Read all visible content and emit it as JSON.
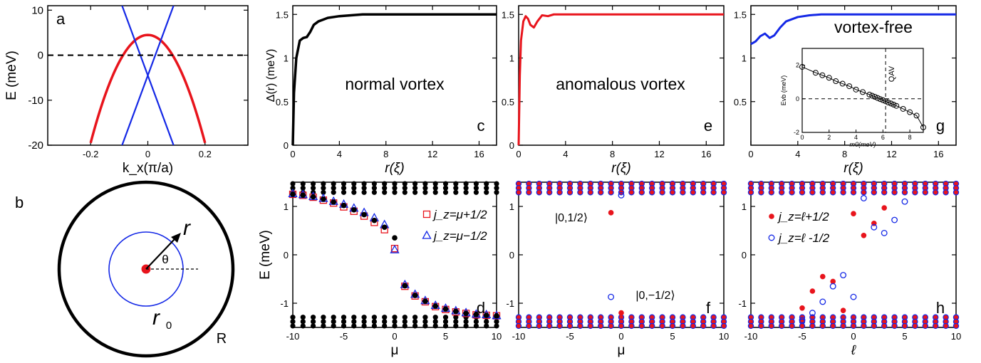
{
  "colors": {
    "red": "#e8141c",
    "blue": "#1428e6",
    "black": "#000000",
    "purple": "#8a2a8a"
  },
  "chart_data": [
    {
      "id": "a",
      "type": "line",
      "panel_label": "a",
      "ylabel": "E (meV)",
      "xlabel": "k_x(π/a)",
      "xlim": [
        -0.35,
        0.35
      ],
      "ylim": [
        -20,
        11
      ],
      "xticks": [
        "-0.2",
        "0",
        "0.2"
      ],
      "yticks": [
        "10",
        "0",
        "-10",
        "-20"
      ],
      "series": [
        {
          "color": "red",
          "curve": "E = 4.5 - 600 k^2",
          "x": [
            -0.2,
            -0.15,
            -0.1,
            -0.05,
            0,
            0.05,
            0.1,
            0.15,
            0.2
          ],
          "y": [
            -19.5,
            -9,
            -1.5,
            3,
            4.5,
            3,
            -1.5,
            -9,
            -19.5
          ]
        },
        {
          "color": "blue",
          "x": [
            -0.09,
            0.09
          ],
          "y": [
            -20,
            11
          ]
        },
        {
          "color": "blue",
          "x": [
            -0.09,
            0.09
          ],
          "y": [
            11,
            -20
          ]
        },
        {
          "color": "black",
          "dashed": true,
          "x": [
            -0.35,
            0.35
          ],
          "y": [
            0,
            0
          ]
        }
      ]
    },
    {
      "id": "c",
      "type": "line",
      "panel_label": "c",
      "annotation": "normal vortex",
      "ylabel": "Δ(r) (meV)",
      "xlabel": "r(ξ)",
      "xlim": [
        0,
        17.5
      ],
      "ylim": [
        0,
        1.6
      ],
      "xticks": [
        "0",
        "4",
        "8",
        "12",
        "16"
      ],
      "yticks": [
        "0",
        "0.5",
        "1",
        "1.5"
      ],
      "series": [
        {
          "color": "black",
          "x": [
            0,
            0.1,
            0.3,
            0.6,
            0.9,
            1.2,
            1.5,
            1.8,
            2.2,
            2.6,
            3.0,
            4,
            5,
            6,
            8,
            10,
            17.5
          ],
          "y": [
            0,
            0.6,
            1.0,
            1.2,
            1.23,
            1.24,
            1.3,
            1.38,
            1.42,
            1.44,
            1.46,
            1.48,
            1.49,
            1.5,
            1.5,
            1.5,
            1.5
          ]
        }
      ]
    },
    {
      "id": "e",
      "type": "line",
      "panel_label": "e",
      "annotation": "anomalous vortex",
      "xlabel": "r(ξ)",
      "xlim": [
        0,
        17.5
      ],
      "ylim": [
        0,
        1.6
      ],
      "xticks": [
        "0",
        "4",
        "8",
        "12",
        "16"
      ],
      "yticks": [
        "0",
        "0.5",
        "1",
        "1.5"
      ],
      "series": [
        {
          "color": "red",
          "x": [
            0,
            0.1,
            0.2,
            0.4,
            0.6,
            0.8,
            1.0,
            1.3,
            1.6,
            2.0,
            2.5,
            3.0,
            4,
            6,
            17.5
          ],
          "y": [
            0,
            0.8,
            1.2,
            1.42,
            1.48,
            1.45,
            1.38,
            1.35,
            1.42,
            1.49,
            1.48,
            1.5,
            1.5,
            1.5,
            1.5
          ]
        }
      ]
    },
    {
      "id": "g",
      "type": "line",
      "panel_label": "g",
      "annotation": "vortex-free",
      "xlabel": "r(ξ)",
      "xlim": [
        0,
        17.5
      ],
      "ylim": [
        0,
        1.6
      ],
      "xticks": [
        "0",
        "4",
        "8",
        "12",
        "16"
      ],
      "yticks": [
        "0.5",
        "1",
        "1.5"
      ],
      "series": [
        {
          "color": "blue",
          "x": [
            0,
            0.4,
            0.8,
            1.2,
            1.6,
            2.0,
            2.5,
            3.0,
            4,
            5,
            6,
            8,
            17.5
          ],
          "y": [
            1.16,
            1.19,
            1.25,
            1.28,
            1.23,
            1.26,
            1.35,
            1.42,
            1.47,
            1.49,
            1.5,
            1.5,
            1.5
          ]
        }
      ],
      "inset": {
        "type": "scatter",
        "xlabel": "m0(meV)",
        "ylabel": "Evb (meV)",
        "annotation": "QAV",
        "xlim": [
          0,
          9
        ],
        "ylim": [
          -2,
          3
        ],
        "xticks": [
          "0",
          "2",
          "4",
          "6",
          "8"
        ],
        "yticks": [
          "2",
          "0",
          "-2"
        ],
        "vline": 6.2,
        "hline": 0,
        "x": [
          0,
          1,
          1.5,
          2,
          2.5,
          3,
          3.5,
          4,
          4.5,
          5,
          5.2,
          5.4,
          5.6,
          5.8,
          6.0,
          6.2,
          6.4,
          6.6,
          6.8,
          7.0,
          7.5,
          8,
          8.5,
          9
        ],
        "y": [
          1.9,
          1.55,
          1.4,
          1.25,
          1.05,
          0.9,
          0.75,
          0.55,
          0.4,
          0.25,
          0.18,
          0.12,
          0.05,
          -0.02,
          -0.08,
          -0.15,
          -0.22,
          -0.28,
          -0.35,
          -0.42,
          -0.6,
          -0.8,
          -1.0,
          -1.7
        ]
      }
    },
    {
      "id": "d",
      "type": "scatter",
      "panel_label": "d",
      "ylabel": "E (meV)",
      "xlabel": "μ",
      "xlim": [
        -10,
        10
      ],
      "ylim": [
        -1.5,
        1.5
      ],
      "xticks": [
        "-10",
        "-5",
        "0",
        "5",
        "10"
      ],
      "yticks": [
        "1",
        "0",
        "-1"
      ],
      "band_levels": [
        1.47,
        1.38,
        1.29,
        -1.29,
        -1.38,
        -1.47
      ],
      "band_colors": [
        "black"
      ],
      "legend": [
        "j_z=μ+1/2",
        "j_z=μ−1/2"
      ],
      "series": [
        {
          "marker": "open-square",
          "color": "red",
          "x": [
            -10,
            -9,
            -8,
            -7,
            -6,
            -5,
            -4,
            -3,
            -2,
            -1,
            0,
            1,
            2,
            3,
            4,
            5,
            6,
            7,
            8,
            9,
            10
          ],
          "y": [
            1.25,
            1.23,
            1.19,
            1.13,
            1.07,
            0.99,
            0.9,
            0.8,
            0.67,
            0.52,
            0.13,
            -0.65,
            -0.85,
            -0.97,
            -1.07,
            -1.13,
            -1.18,
            -1.21,
            -1.24,
            -1.25,
            -1.26
          ]
        },
        {
          "marker": "open-triangle",
          "color": "blue",
          "x": [
            -10,
            -9,
            -8,
            -7,
            -6,
            -5,
            -4,
            -3,
            -2,
            -1,
            0,
            1,
            2,
            3,
            4,
            5,
            6,
            7,
            8,
            9,
            10
          ],
          "y": [
            1.26,
            1.24,
            1.2,
            1.16,
            1.1,
            1.04,
            0.96,
            0.87,
            0.76,
            0.62,
            0.1,
            -0.62,
            -0.82,
            -0.95,
            -1.05,
            -1.11,
            -1.16,
            -1.2,
            -1.23,
            -1.24,
            -1.26
          ]
        },
        {
          "marker": "filled-circle",
          "color": "black",
          "x": [
            -10,
            -9,
            -8,
            -7,
            -6,
            -5,
            -4,
            -3,
            -2,
            -1,
            0,
            1,
            2,
            3,
            4,
            5,
            6,
            7,
            8,
            9,
            10
          ],
          "y": [
            1.25,
            1.23,
            1.2,
            1.15,
            1.09,
            1.02,
            0.93,
            0.83,
            0.71,
            0.57,
            0.35,
            -0.64,
            -0.84,
            -0.96,
            -1.06,
            -1.12,
            -1.17,
            -1.21,
            -1.23,
            -1.25,
            -1.26
          ]
        }
      ]
    },
    {
      "id": "f",
      "type": "scatter",
      "panel_label": "f",
      "xlabel": "μ",
      "xlim": [
        -10,
        10
      ],
      "ylim": [
        -1.5,
        1.5
      ],
      "xticks": [
        "-10",
        "-5",
        "0",
        "5",
        "10"
      ],
      "yticks": [
        "1",
        "0",
        "-1"
      ],
      "band_levels": [
        1.47,
        1.38,
        1.29,
        -1.29,
        -1.38,
        -1.47
      ],
      "band_colors": [
        "purple"
      ],
      "annotations": [
        "|0,1/2⟩",
        "|0,−1/2⟩"
      ],
      "series": [
        {
          "marker": "filled-circle",
          "color": "red",
          "x": [
            -1,
            0
          ],
          "y": [
            0.87,
            -1.2
          ]
        },
        {
          "marker": "open-circle",
          "color": "blue",
          "x": [
            0,
            -1
          ],
          "y": [
            1.23,
            -0.87
          ]
        }
      ]
    },
    {
      "id": "h",
      "type": "scatter",
      "panel_label": "h",
      "xlabel": "ℓ",
      "xlim": [
        -10,
        10
      ],
      "ylim": [
        -1.5,
        1.5
      ],
      "xticks": [
        "-10",
        "-5",
        "0",
        "5",
        "10"
      ],
      "yticks": [
        "1",
        "0",
        "-1"
      ],
      "band_levels": [
        1.47,
        1.38,
        1.29,
        -1.29,
        -1.38,
        -1.47
      ],
      "band_colors": [
        "purple"
      ],
      "legend": [
        "j_z=ℓ+1/2",
        "j_z=ℓ -1/2"
      ],
      "series": [
        {
          "marker": "filled-circle",
          "color": "red",
          "x": [
            -5,
            -4,
            -3,
            -2,
            -1,
            0,
            1,
            2,
            3
          ],
          "y": [
            -1.1,
            -0.75,
            -0.45,
            -0.55,
            -1.15,
            0.85,
            0.4,
            0.65,
            0.97
          ]
        },
        {
          "marker": "open-circle",
          "color": "blue",
          "x": [
            -5,
            -4,
            -3,
            -2,
            -1,
            0,
            1,
            2,
            3,
            4,
            5
          ],
          "y": [
            -1.35,
            -1.2,
            -0.97,
            -0.65,
            -0.42,
            -0.87,
            1.17,
            0.57,
            0.45,
            0.72,
            1.1
          ]
        }
      ]
    },
    {
      "id": "b",
      "type": "diagram",
      "panel_label": "b",
      "labels": {
        "r": "r",
        "theta": "θ",
        "r0": "r",
        "r0_sub": "0",
        "R": "R"
      }
    }
  ]
}
